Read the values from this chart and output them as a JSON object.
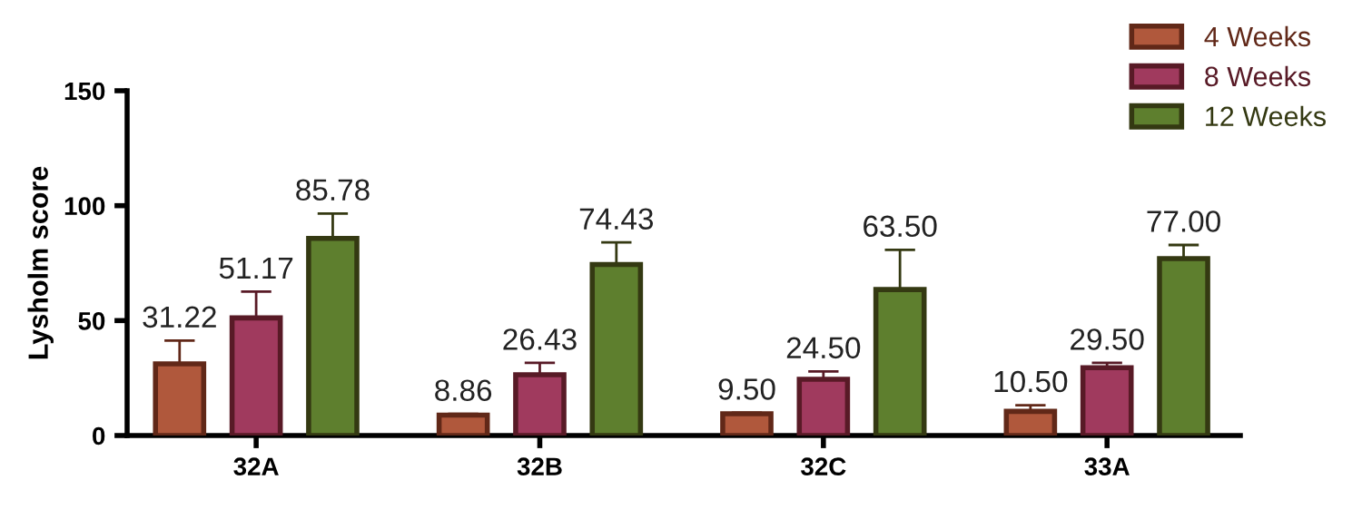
{
  "chart_data": {
    "type": "bar",
    "ylabel": "Lysholm score",
    "categories": [
      "32A",
      "32B",
      "32C",
      "33A"
    ],
    "ylim": [
      0,
      150
    ],
    "yticks": [
      0,
      50,
      100,
      150
    ],
    "grid": false,
    "legend": "top right",
    "series": [
      {
        "name": "4 Weeks",
        "color": "#b0583c",
        "values": [
          31.22,
          8.86,
          9.5,
          10.5
        ],
        "value_labels": [
          "31.22",
          "8.86",
          "9.50",
          "10.50"
        ],
        "errors": [
          [
            31.22,
            41.3
          ],
          [
            8.86,
            9.4
          ],
          [
            9.5,
            9.9
          ],
          [
            10.5,
            13.2
          ]
        ]
      },
      {
        "name": "8 Weeks",
        "color": "#a03a5e",
        "values": [
          51.17,
          26.43,
          24.5,
          29.5
        ],
        "value_labels": [
          "51.17",
          "26.43",
          "24.50",
          "29.50"
        ],
        "errors": [
          [
            51.17,
            62.6
          ],
          [
            26.43,
            31.6
          ],
          [
            24.5,
            27.9
          ],
          [
            29.5,
            31.6
          ]
        ]
      },
      {
        "name": "12 Weeks",
        "color": "#5e7f2e",
        "values": [
          85.78,
          74.43,
          63.5,
          77.0
        ],
        "value_labels": [
          "85.78",
          "74.43",
          "63.50",
          "77.00"
        ],
        "errors": [
          [
            85.78,
            96.6
          ],
          [
            74.43,
            84.0
          ],
          [
            63.5,
            80.8
          ],
          [
            77.0,
            82.9
          ]
        ]
      }
    ]
  }
}
